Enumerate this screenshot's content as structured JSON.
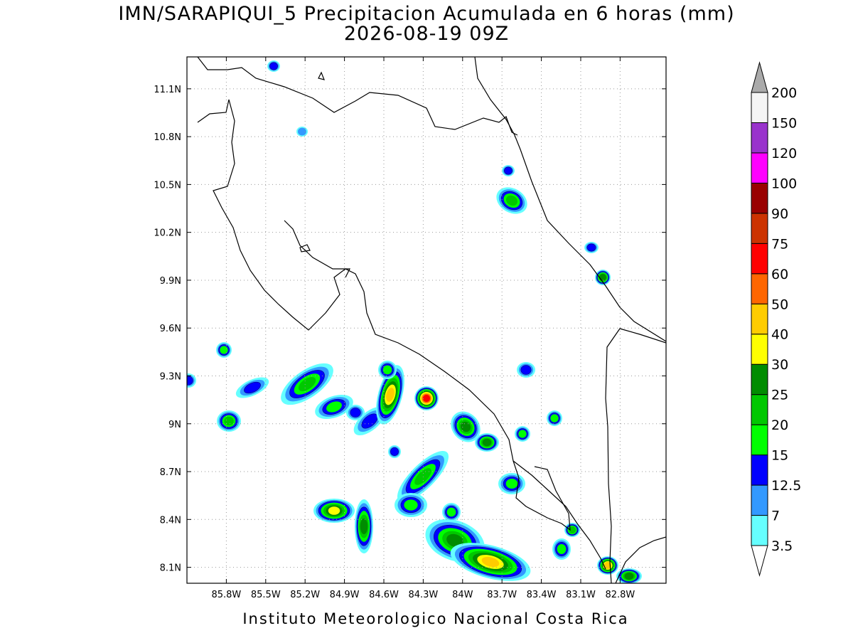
{
  "map": {
    "title": "IMN/SARAPIQUI_5 Precipitacion Acumulada en 6 horas (mm)",
    "subtitle": "2026-08-19 09Z",
    "lat_range": [
      8.0,
      11.3
    ],
    "lon_range": [
      -86.1,
      -82.45
    ],
    "lat_ticks": [
      {
        "value": 11.1,
        "label": "11.1N"
      },
      {
        "value": 10.8,
        "label": "10.8N"
      },
      {
        "value": 10.5,
        "label": "10.5N"
      },
      {
        "value": 10.2,
        "label": "10.2N"
      },
      {
        "value": 9.9,
        "label": "9.9N"
      },
      {
        "value": 9.6,
        "label": "9.6N"
      },
      {
        "value": 9.3,
        "label": "9.3N"
      },
      {
        "value": 9,
        "label": "9N"
      },
      {
        "value": 8.7,
        "label": "8.7N"
      },
      {
        "value": 8.4,
        "label": "8.4N"
      },
      {
        "value": 8.1,
        "label": "8.1N"
      }
    ],
    "lon_ticks": [
      {
        "value": -85.8,
        "label": "85.8W"
      },
      {
        "value": -85.5,
        "label": "85.5W"
      },
      {
        "value": -85.2,
        "label": "85.2W"
      },
      {
        "value": -84.9,
        "label": "84.9W"
      },
      {
        "value": -84.6,
        "label": "84.6W"
      },
      {
        "value": -84.3,
        "label": "84.3W"
      },
      {
        "value": -84,
        "label": "84W"
      },
      {
        "value": -83.7,
        "label": "83.7W"
      },
      {
        "value": -83.4,
        "label": "83.4W"
      },
      {
        "value": -83.1,
        "label": "83.1W"
      },
      {
        "value": -82.8,
        "label": "82.8W"
      }
    ],
    "grid": true,
    "colorbar": {
      "levels": [
        3.5,
        7,
        12.5,
        15,
        20,
        25,
        30,
        40,
        50,
        60,
        75,
        90,
        100,
        120,
        150,
        200
      ],
      "colors": [
        "#66ffff",
        "#3399ff",
        "#0000ff",
        "#00ff00",
        "#00c800",
        "#008c00",
        "#ffff00",
        "#ffcc00",
        "#ff6600",
        "#ff0000",
        "#cc3300",
        "#990000",
        "#ff00ff",
        "#9933cc",
        "#f5f5f5"
      ],
      "under_color": "#ffffff",
      "over_color": "#aaaaaa"
    },
    "footer": "Instituto Meteorologico Nacional Costa Rica"
  }
}
